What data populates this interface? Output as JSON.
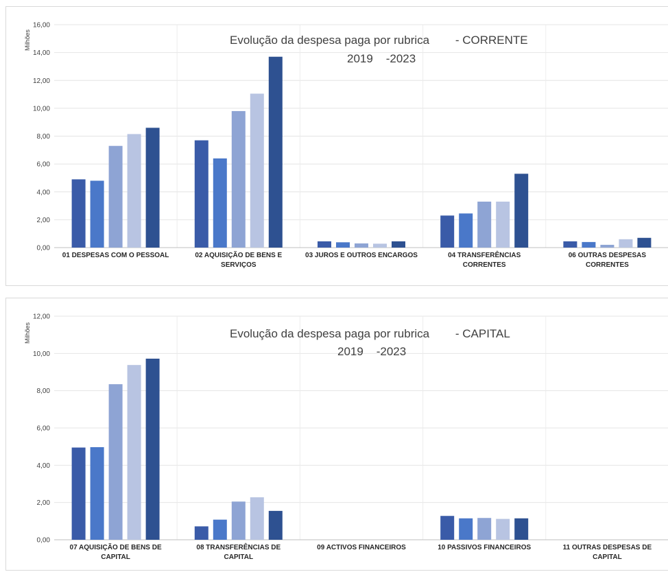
{
  "palette": [
    "#3a5ba8",
    "#4a78c9",
    "#8ea4d4",
    "#b8c4e2",
    "#2e5191"
  ],
  "chart_data": [
    {
      "type": "bar",
      "title": "Evolução da despesa paga por rubrica        - CORRENTE",
      "subtitle": "2019    -2023",
      "ylabel": "Milhões",
      "xlabel": "",
      "ylim": [
        0,
        16
      ],
      "yticks": [
        "0,00",
        "2,00",
        "4,00",
        "6,00",
        "8,00",
        "10,00",
        "12,00",
        "14,00",
        "16,00"
      ],
      "grid": true,
      "categories": [
        [
          "01  DESPESAS COM O PESSOAL"
        ],
        [
          "02  AQUISIÇÃO DE BENS E",
          "SERVIÇOS"
        ],
        [
          "03  JUROS E OUTROS ENCARGOS"
        ],
        [
          "04  TRANSFERÊNCIAS",
          "CORRENTES"
        ],
        [
          "06  OUTRAS DESPESAS",
          "CORRENTES"
        ]
      ],
      "series": [
        {
          "values": [
            4.9,
            7.7,
            0.45,
            2.3,
            0.45
          ]
        },
        {
          "values": [
            4.8,
            6.4,
            0.38,
            2.45,
            0.4
          ]
        },
        {
          "values": [
            7.3,
            9.8,
            0.3,
            3.3,
            0.2
          ]
        },
        {
          "values": [
            8.15,
            11.05,
            0.28,
            3.3,
            0.6
          ]
        },
        {
          "values": [
            8.6,
            13.7,
            0.45,
            5.3,
            0.7
          ]
        }
      ]
    },
    {
      "type": "bar",
      "title": "Evolução da despesa paga por rubrica        - CAPITAL",
      "subtitle": "2019    -2023",
      "ylabel": "Milhões",
      "xlabel": "",
      "ylim": [
        0,
        12
      ],
      "yticks": [
        "0,00",
        "2,00",
        "4,00",
        "6,00",
        "8,00",
        "10,00",
        "12,00"
      ],
      "grid": true,
      "categories": [
        [
          "07  AQUISIÇÃO DE BENS DE",
          "CAPITAL"
        ],
        [
          "08  TRANSFERÊNCIAS DE",
          "CAPITAL"
        ],
        [
          "09  ACTIVOS FINANCEIROS"
        ],
        [
          "10  PASSIVOS FINANCEIROS"
        ],
        [
          "11  OUTRAS DESPESAS DE",
          "CAPITAL"
        ]
      ],
      "series": [
        {
          "values": [
            4.95,
            0.72,
            0,
            1.28,
            0
          ]
        },
        {
          "values": [
            4.97,
            1.08,
            0,
            1.15,
            0
          ]
        },
        {
          "values": [
            8.35,
            2.05,
            0,
            1.17,
            0
          ]
        },
        {
          "values": [
            9.38,
            2.28,
            0,
            1.12,
            0
          ]
        },
        {
          "values": [
            9.72,
            1.55,
            0,
            1.15,
            0
          ]
        }
      ]
    }
  ]
}
